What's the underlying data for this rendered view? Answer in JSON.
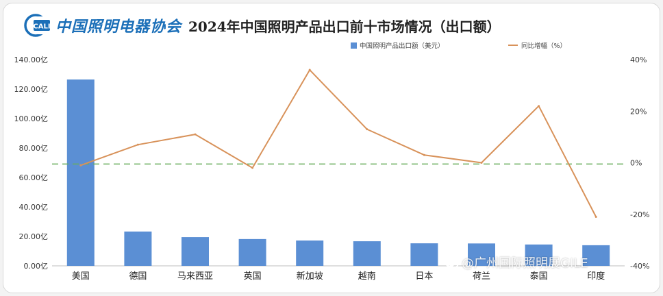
{
  "header": {
    "logo_text": "中国照明电器协会",
    "logo_mark": "CALI",
    "title": "2024年中国照明产品出口前十市场情况（出口额）"
  },
  "watermark": {
    "text": "@广州国际照明展GILE"
  },
  "chart_data": {
    "type": "bar+line",
    "title": "2024年中国照明产品出口前十市场情况（出口额）",
    "categories": [
      "美国",
      "德国",
      "马来西亚",
      "英国",
      "新加坡",
      "越南",
      "日本",
      "荷兰",
      "泰国",
      "印度"
    ],
    "series": [
      {
        "name": "中国照明产品出口额（美元）",
        "type": "bar",
        "axis": "left",
        "color": "#5b8fd4",
        "values": [
          126.5,
          23.3,
          19.5,
          18.2,
          17.2,
          16.7,
          15.3,
          15.2,
          14.5,
          14.0
        ]
      },
      {
        "name": "同比增幅（%）",
        "type": "line",
        "axis": "right",
        "color": "#d8925a",
        "values": [
          -1.0,
          7.0,
          11.0,
          -2.0,
          36.0,
          13.0,
          3.0,
          0.0,
          22.0,
          -21.0
        ]
      }
    ],
    "y_left": {
      "range": [
        0,
        140
      ],
      "ticks": [
        0,
        20,
        40,
        60,
        80,
        100,
        120,
        140
      ],
      "tick_labels": [
        "0.00亿",
        "20.00亿",
        "40.00亿",
        "60.00亿",
        "80.00亿",
        "100.00亿",
        "120.00亿",
        "140.00亿"
      ]
    },
    "y_right": {
      "range": [
        -40,
        40
      ],
      "ticks": [
        -40,
        -20,
        0,
        20,
        40
      ],
      "tick_labels": [
        "-40%",
        "-20%",
        "0%",
        "20%",
        "40%"
      ]
    },
    "reference_line": {
      "axis": "right",
      "value": -0.5,
      "color": "#6aae5e",
      "style": "dashed"
    },
    "legend": {
      "placement": "top"
    },
    "grid": false
  }
}
